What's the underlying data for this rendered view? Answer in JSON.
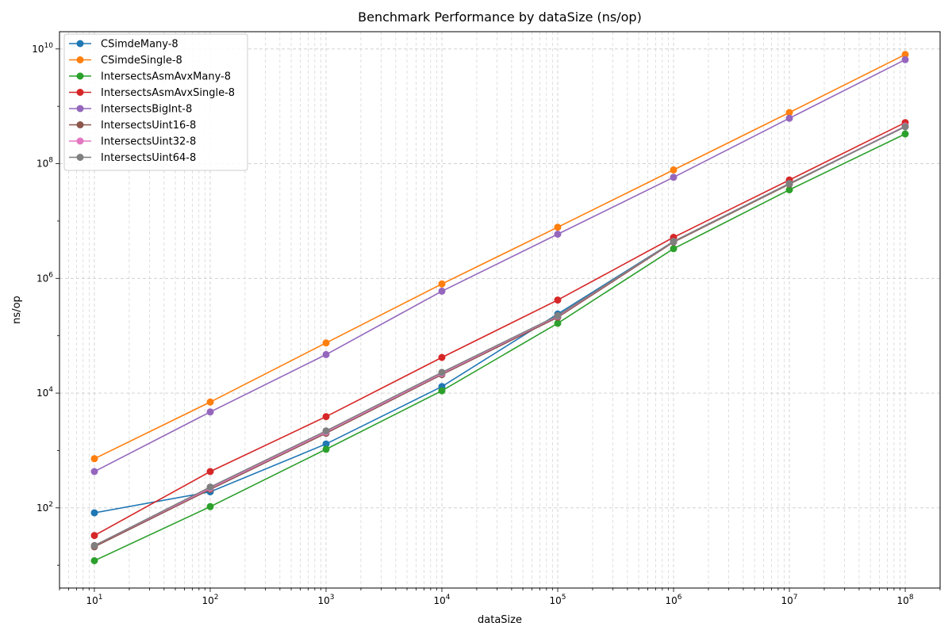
{
  "chart_data": {
    "type": "line",
    "title": "Benchmark Performance by dataSize (ns/op)",
    "xlabel": "dataSize",
    "ylabel": "ns/op",
    "xscale": "log",
    "yscale": "log",
    "xlim": [
      5,
      200000000
    ],
    "ylim": [
      4,
      20000000000
    ],
    "grid": true,
    "legend_position": "top-left",
    "x_ticks": [
      {
        "base": "10",
        "exp": "1",
        "value": 10
      },
      {
        "base": "10",
        "exp": "2",
        "value": 100
      },
      {
        "base": "10",
        "exp": "3",
        "value": 1000
      },
      {
        "base": "10",
        "exp": "4",
        "value": 10000
      },
      {
        "base": "10",
        "exp": "5",
        "value": 100000
      },
      {
        "base": "10",
        "exp": "6",
        "value": 1000000
      },
      {
        "base": "10",
        "exp": "7",
        "value": 10000000
      },
      {
        "base": "10",
        "exp": "8",
        "value": 100000000
      }
    ],
    "y_ticks": [
      {
        "base": "10",
        "exp": "2",
        "value": 100
      },
      {
        "base": "10",
        "exp": "4",
        "value": 10000
      },
      {
        "base": "10",
        "exp": "6",
        "value": 1000000
      },
      {
        "base": "10",
        "exp": "8",
        "value": 100000000
      },
      {
        "base": "10",
        "exp": "10",
        "value": 10000000000
      }
    ],
    "x": [
      10,
      100,
      1000,
      10000,
      100000,
      1000000,
      10000000,
      100000000
    ],
    "series": [
      {
        "name": "CSimdeMany-8",
        "color": "#1f77b4",
        "values": [
          82,
          190,
          1300,
          13000,
          240000,
          4400000,
          45000000,
          450000000
        ]
      },
      {
        "name": "CSimdeSingle-8",
        "color": "#ff7f0e",
        "values": [
          720,
          7000,
          75000,
          800000,
          7800000,
          78000000,
          780000000,
          8000000000
        ]
      },
      {
        "name": "IntersectsAsmAvxMany-8",
        "color": "#2ca02c",
        "values": [
          12,
          105,
          1050,
          11000,
          165000,
          3300000,
          35000000,
          330000000
        ]
      },
      {
        "name": "IntersectsAsmAvxSingle-8",
        "color": "#d62728",
        "values": [
          33,
          430,
          3900,
          42000,
          420000,
          5200000,
          52000000,
          520000000
        ]
      },
      {
        "name": "IntersectsBigInt-8",
        "color": "#9467bd",
        "values": [
          430,
          4700,
          47000,
          600000,
          5900000,
          58000000,
          620000000,
          6500000000
        ]
      },
      {
        "name": "IntersectsUint16-8",
        "color": "#8c564b",
        "values": [
          21,
          210,
          2000,
          21000,
          210000,
          4300000,
          44000000,
          450000000
        ]
      },
      {
        "name": "IntersectsUint32-8",
        "color": "#e377c2",
        "values": [
          22,
          220,
          2100,
          22000,
          220000,
          4400000,
          45000000,
          450000000
        ]
      },
      {
        "name": "IntersectsUint64-8",
        "color": "#7f7f7f",
        "values": [
          22,
          230,
          2200,
          23000,
          225000,
          4400000,
          45000000,
          440000000
        ]
      }
    ]
  }
}
